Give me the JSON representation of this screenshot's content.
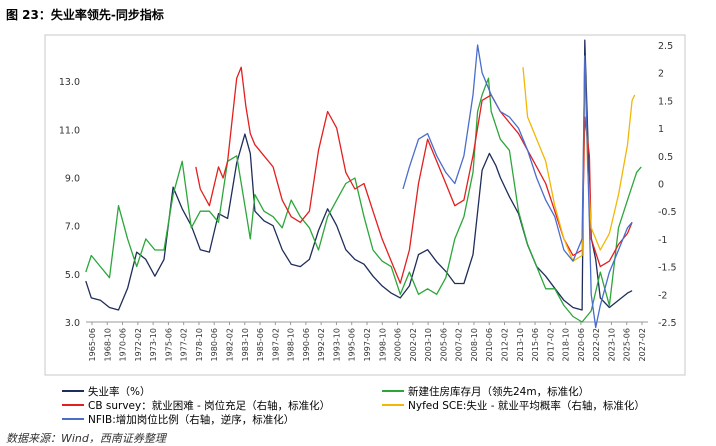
{
  "figure_title": "图 23：失业率领先-同步指标",
  "source": "数据来源：Wind，西南证券整理",
  "chart_data": {
    "type": "line",
    "title": "图 23：失业率领先-同步指标",
    "x_start": 1965.42,
    "x_end": 2027.25,
    "left_axis": {
      "ylim": [
        3.0,
        14.5
      ],
      "ticks": [
        3.0,
        5.0,
        7.0,
        9.0,
        11.0,
        13.0
      ],
      "tick_labels": [
        "3.0",
        "5.0",
        "7.0",
        "9.0",
        "11.0",
        "13.0"
      ]
    },
    "right_axis": {
      "ylim": [
        -2.5,
        2.5
      ],
      "ticks": [
        2.5,
        2,
        1.5,
        1,
        0.5,
        0,
        -0.5,
        -1,
        -1.5,
        -2,
        -2.5
      ],
      "tick_labels": [
        "2.5",
        "2",
        "1.5",
        "1",
        "0.5",
        "0",
        "-0.5",
        "-1",
        "-1.5",
        "-2",
        "-2.5"
      ]
    },
    "x_tick_labels": [
      "1965-06",
      "1968-10",
      "1970-06",
      "1972-02",
      "1973-10",
      "1975-06",
      "1977-02",
      "1978-10",
      "1980-06",
      "1982-02",
      "1983-10",
      "1985-06",
      "1987-02",
      "1988-10",
      "1990-06",
      "1992-02",
      "1993-10",
      "1995-06",
      "1997-02",
      "1998-10",
      "2000-06",
      "2002-02",
      "2003-10",
      "2005-06",
      "2007-02",
      "2008-10",
      "2010-06",
      "2012-02",
      "2013-10",
      "2015-06",
      "2017-02",
      "2018-10",
      "2020-06",
      "2022-02",
      "2023-10",
      "2025-06",
      "2027-02"
    ],
    "series": [
      {
        "name": "失业率（%）",
        "axis": "left",
        "color": "#1f2d5a",
        "legend_style": "line",
        "points": [
          [
            1965.4,
            4.7
          ],
          [
            1966,
            4.0
          ],
          [
            1967,
            3.9
          ],
          [
            1968,
            3.6
          ],
          [
            1969,
            3.5
          ],
          [
            1970,
            4.4
          ],
          [
            1971,
            5.9
          ],
          [
            1972,
            5.6
          ],
          [
            1973,
            4.9
          ],
          [
            1974,
            5.6
          ],
          [
            1975,
            8.6
          ],
          [
            1976,
            7.7
          ],
          [
            1977,
            7.0
          ],
          [
            1978,
            6.0
          ],
          [
            1979,
            5.9
          ],
          [
            1980,
            7.5
          ],
          [
            1981,
            7.3
          ],
          [
            1982,
            9.6
          ],
          [
            1982.9,
            10.8
          ],
          [
            1983.5,
            10.0
          ],
          [
            1984,
            7.6
          ],
          [
            1985,
            7.2
          ],
          [
            1986,
            7.0
          ],
          [
            1987,
            6.0
          ],
          [
            1988,
            5.4
          ],
          [
            1989,
            5.3
          ],
          [
            1990,
            5.6
          ],
          [
            1991,
            6.8
          ],
          [
            1992,
            7.7
          ],
          [
            1993,
            7.0
          ],
          [
            1994,
            6.0
          ],
          [
            1995,
            5.6
          ],
          [
            1996,
            5.4
          ],
          [
            1997,
            4.9
          ],
          [
            1998,
            4.5
          ],
          [
            1999,
            4.2
          ],
          [
            2000,
            4.0
          ],
          [
            2001,
            4.5
          ],
          [
            2002,
            5.8
          ],
          [
            2003,
            6.0
          ],
          [
            2004,
            5.5
          ],
          [
            2005,
            5.1
          ],
          [
            2006,
            4.6
          ],
          [
            2007,
            4.6
          ],
          [
            2008,
            5.8
          ],
          [
            2009,
            9.3
          ],
          [
            2009.8,
            10.0
          ],
          [
            2010.5,
            9.5
          ],
          [
            2011,
            9.0
          ],
          [
            2012,
            8.2
          ],
          [
            2013,
            7.5
          ],
          [
            2014,
            6.2
          ],
          [
            2015,
            5.3
          ],
          [
            2016,
            4.9
          ],
          [
            2017,
            4.4
          ],
          [
            2018,
            3.9
          ],
          [
            2019,
            3.6
          ],
          [
            2020,
            3.5
          ],
          [
            2020.3,
            14.7
          ],
          [
            2020.6,
            11.0
          ],
          [
            2021,
            6.5
          ],
          [
            2021.5,
            5.6
          ],
          [
            2022,
            4.0
          ],
          [
            2023,
            3.6
          ],
          [
            2024,
            3.9
          ],
          [
            2025,
            4.2
          ],
          [
            2025.5,
            4.3
          ]
        ]
      },
      {
        "name": "新建住房库存月（领先24m，标准化）",
        "axis": "right",
        "color": "#2ca63a",
        "legend_style": "line",
        "points": [
          [
            1965.4,
            -1.6
          ],
          [
            1966,
            -1.3
          ],
          [
            1967,
            -1.5
          ],
          [
            1968,
            -1.7
          ],
          [
            1969,
            -0.4
          ],
          [
            1970,
            -1.0
          ],
          [
            1971,
            -1.5
          ],
          [
            1972,
            -1.0
          ],
          [
            1973,
            -1.2
          ],
          [
            1974,
            -1.2
          ],
          [
            1975,
            -0.2
          ],
          [
            1976,
            0.4
          ],
          [
            1977,
            -0.8
          ],
          [
            1978,
            -0.5
          ],
          [
            1979,
            -0.5
          ],
          [
            1980,
            -0.7
          ],
          [
            1981,
            0.4
          ],
          [
            1982,
            0.5
          ],
          [
            1983,
            -0.5
          ],
          [
            1983.5,
            -1.0
          ],
          [
            1984,
            -0.2
          ],
          [
            1985,
            -0.5
          ],
          [
            1986,
            -0.6
          ],
          [
            1987,
            -0.8
          ],
          [
            1988,
            -0.3
          ],
          [
            1989,
            -0.6
          ],
          [
            1990,
            -0.8
          ],
          [
            1991,
            -1.2
          ],
          [
            1992,
            -0.6
          ],
          [
            1993,
            -0.3
          ],
          [
            1994,
            0.0
          ],
          [
            1995,
            0.1
          ],
          [
            1996,
            -0.6
          ],
          [
            1997,
            -1.2
          ],
          [
            1998,
            -1.4
          ],
          [
            1999,
            -1.5
          ],
          [
            2000,
            -2.0
          ],
          [
            2001,
            -1.6
          ],
          [
            2002,
            -2.0
          ],
          [
            2003,
            -1.9
          ],
          [
            2004,
            -2.0
          ],
          [
            2005,
            -1.7
          ],
          [
            2006,
            -1.0
          ],
          [
            2007,
            -0.6
          ],
          [
            2008,
            0.2
          ],
          [
            2008.5,
            1.3
          ],
          [
            2009,
            1.6
          ],
          [
            2009.7,
            1.9
          ],
          [
            2010,
            1.3
          ],
          [
            2011,
            0.8
          ],
          [
            2012,
            0.6
          ],
          [
            2013,
            -0.5
          ],
          [
            2014,
            -1.1
          ],
          [
            2015,
            -1.5
          ],
          [
            2016,
            -1.9
          ],
          [
            2017,
            -1.9
          ],
          [
            2018,
            -2.2
          ],
          [
            2019,
            -2.4
          ],
          [
            2020,
            -2.5
          ],
          [
            2021,
            -2.3
          ],
          [
            2022,
            -1.6
          ],
          [
            2022.5,
            -1.9
          ],
          [
            2023,
            -2.2
          ],
          [
            2024,
            -0.8
          ],
          [
            2025,
            -0.3
          ],
          [
            2026,
            0.2
          ],
          [
            2026.5,
            0.3
          ]
        ]
      },
      {
        "name": "CB survey：就业困难 - 岗位充足（右轴，标准化）",
        "axis": "right",
        "color": "#e31f1f",
        "legend_style": "line",
        "points": [
          [
            1977.5,
            0.3
          ],
          [
            1978,
            -0.1
          ],
          [
            1979,
            -0.4
          ],
          [
            1980,
            0.3
          ],
          [
            1980.5,
            0.1
          ],
          [
            1981,
            0.4
          ],
          [
            1982,
            1.9
          ],
          [
            1982.5,
            2.1
          ],
          [
            1983,
            1.4
          ],
          [
            1983.5,
            0.9
          ],
          [
            1984,
            0.7
          ],
          [
            1985,
            0.5
          ],
          [
            1986,
            0.3
          ],
          [
            1987,
            -0.3
          ],
          [
            1988,
            -0.6
          ],
          [
            1989,
            -0.7
          ],
          [
            1990,
            -0.5
          ],
          [
            1991,
            0.6
          ],
          [
            1992,
            1.3
          ],
          [
            1993,
            1.0
          ],
          [
            1994,
            0.2
          ],
          [
            1995,
            -0.1
          ],
          [
            1996,
            0.0
          ],
          [
            1997,
            -0.5
          ],
          [
            1998,
            -1.0
          ],
          [
            1999,
            -1.4
          ],
          [
            2000,
            -1.8
          ],
          [
            2001,
            -1.2
          ],
          [
            2002,
            0.0
          ],
          [
            2003,
            0.8
          ],
          [
            2004,
            0.4
          ],
          [
            2005,
            0.0
          ],
          [
            2006,
            -0.4
          ],
          [
            2007,
            -0.3
          ],
          [
            2008,
            0.5
          ],
          [
            2009,
            1.5
          ],
          [
            2010,
            1.6
          ],
          [
            2011,
            1.3
          ],
          [
            2012,
            1.1
          ],
          [
            2013,
            0.9
          ],
          [
            2014,
            0.6
          ],
          [
            2015,
            0.3
          ],
          [
            2016,
            0.0
          ],
          [
            2017,
            -0.5
          ],
          [
            2018,
            -1.0
          ],
          [
            2019,
            -1.3
          ],
          [
            2020,
            -1.2
          ],
          [
            2020.3,
            1.2
          ],
          [
            2020.8,
            0.5
          ],
          [
            2021,
            -1.0
          ],
          [
            2022,
            -1.5
          ],
          [
            2023,
            -1.4
          ],
          [
            2024,
            -1.1
          ],
          [
            2025,
            -0.9
          ],
          [
            2025.5,
            -0.7
          ]
        ]
      },
      {
        "name": "Nyfed SCE:失业 - 就业平均概率（右轴，标准化）",
        "axis": "right",
        "color": "#f2b705",
        "legend_style": "line",
        "points": [
          [
            2013.5,
            2.1
          ],
          [
            2014,
            1.2
          ],
          [
            2015,
            0.8
          ],
          [
            2016,
            0.4
          ],
          [
            2017,
            -0.4
          ],
          [
            2018,
            -1.0
          ],
          [
            2019,
            -1.4
          ],
          [
            2020,
            -1.3
          ],
          [
            2020.3,
            2.3
          ],
          [
            2020.6,
            0.3
          ],
          [
            2021,
            -0.8
          ],
          [
            2022,
            -1.2
          ],
          [
            2023,
            -0.9
          ],
          [
            2024,
            -0.2
          ],
          [
            2025,
            0.7
          ],
          [
            2025.5,
            1.5
          ],
          [
            2025.8,
            1.6
          ]
        ]
      },
      {
        "name": "NFIB:增加岗位比例（右轴，逆序，标准化）",
        "axis": "right",
        "color": "#4a6dcc",
        "legend_style": "line",
        "points": [
          [
            2000.3,
            -0.1
          ],
          [
            2001,
            0.3
          ],
          [
            2002,
            0.8
          ],
          [
            2003,
            0.9
          ],
          [
            2004,
            0.5
          ],
          [
            2005,
            0.2
          ],
          [
            2006,
            0.0
          ],
          [
            2007,
            0.5
          ],
          [
            2008,
            1.6
          ],
          [
            2008.5,
            2.5
          ],
          [
            2009,
            2.0
          ],
          [
            2010,
            1.6
          ],
          [
            2011,
            1.3
          ],
          [
            2012,
            1.2
          ],
          [
            2013,
            1.0
          ],
          [
            2014,
            0.6
          ],
          [
            2015,
            0.1
          ],
          [
            2016,
            -0.3
          ],
          [
            2017,
            -0.6
          ],
          [
            2018,
            -1.2
          ],
          [
            2019,
            -1.4
          ],
          [
            2020,
            -1.0
          ],
          [
            2020.3,
            2.3
          ],
          [
            2020.8,
            -0.7
          ],
          [
            2021,
            -2.0
          ],
          [
            2021.5,
            -2.6
          ],
          [
            2022,
            -2.2
          ],
          [
            2023,
            -1.6
          ],
          [
            2024,
            -1.2
          ],
          [
            2025,
            -0.8
          ],
          [
            2025.5,
            -0.7
          ]
        ]
      }
    ],
    "legend_entries": [
      "失业率（%）",
      "新建住房库存月（领先24m，标准化）",
      "CB survey：就业困难 - 岗位充足（右轴，标准化）",
      "Nyfed SCE:失业 - 就业平均概率（右轴，标准化）",
      "NFIB:增加岗位比例（右轴，逆序，标准化）"
    ]
  }
}
